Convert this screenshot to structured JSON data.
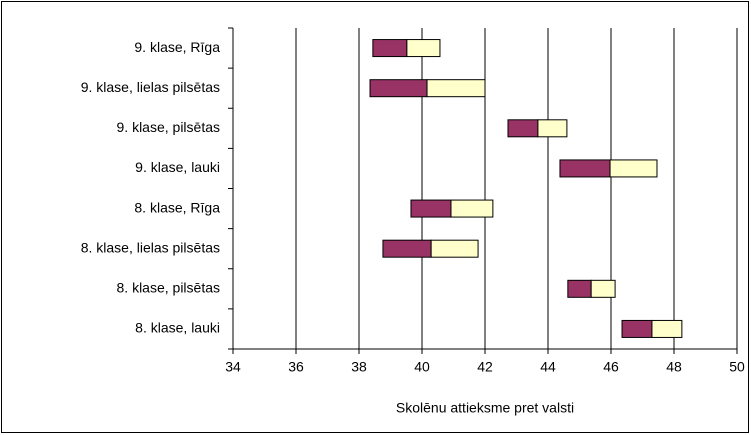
{
  "chart_data": {
    "type": "floating-bar",
    "x_label": "Skolēnu attieksme pret valsti",
    "categories": [
      "9. klase, Rīga",
      "9. klase, lielas pilsētas",
      "9. klase, pilsētas",
      "9. klase, lauki",
      "8. klase, Rīga",
      "8. klase, lielas pilsētas",
      "8. klase, pilsētas",
      "8. klase, lauki"
    ],
    "base": [
      38.44,
      38.35,
      42.73,
      44.38,
      39.65,
      38.76,
      44.63,
      46.35
    ],
    "series": [
      {
        "color": "#993366",
        "values": [
          1.08,
          1.81,
          0.95,
          1.59,
          1.27,
          1.53,
          0.74,
          0.95
        ]
      },
      {
        "color": "#ffffcc",
        "values": [
          1.05,
          1.84,
          0.92,
          1.49,
          1.33,
          1.49,
          0.76,
          0.95
        ]
      }
    ],
    "xlim": [
      34,
      50
    ],
    "xticks": [
      34,
      36,
      38,
      40,
      42,
      44,
      46,
      48,
      50
    ],
    "grid": true
  }
}
